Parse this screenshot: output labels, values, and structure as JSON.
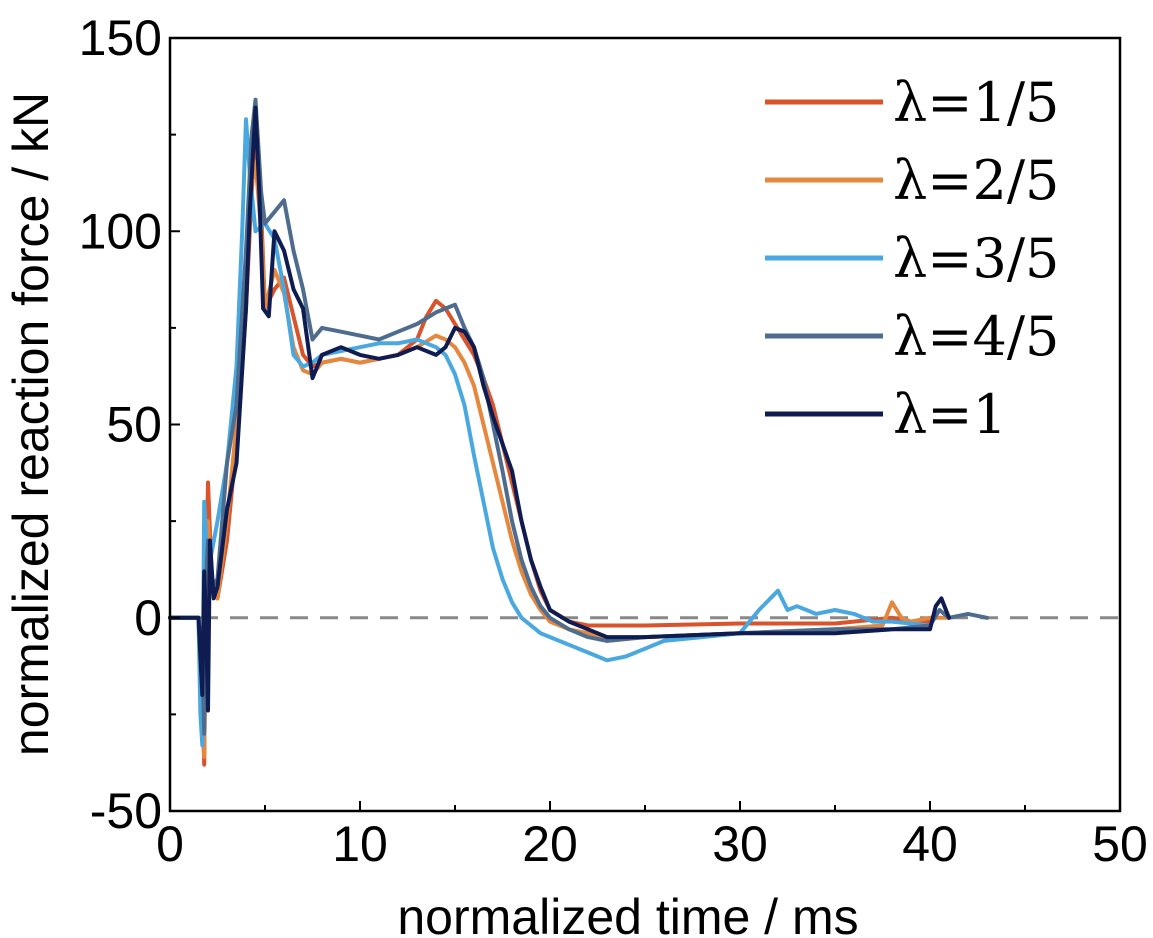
{
  "chart_data": {
    "type": "line",
    "title": "",
    "xlabel": "normalized time / ms",
    "ylabel": "normalized reaction force / kN",
    "xlim": [
      0,
      50
    ],
    "ylim": [
      -50,
      150
    ],
    "xticks": [
      0,
      10,
      20,
      30,
      40,
      50
    ],
    "yticks": [
      -50,
      0,
      50,
      100,
      150
    ],
    "grid": false,
    "legend_position": "top-right",
    "zero_line": {
      "y": 0,
      "style": "dashed",
      "color": "#888888"
    },
    "series": [
      {
        "name": "λ=1/5",
        "color": "#d9532b",
        "points": [
          [
            0,
            0
          ],
          [
            1.5,
            0
          ],
          [
            1.7,
            -20
          ],
          [
            1.8,
            -38
          ],
          [
            1.9,
            10
          ],
          [
            2.0,
            35
          ],
          [
            2.2,
            10
          ],
          [
            2.5,
            5
          ],
          [
            3.0,
            20
          ],
          [
            3.5,
            45
          ],
          [
            4.0,
            80
          ],
          [
            4.3,
            110
          ],
          [
            4.5,
            125
          ],
          [
            4.8,
            105
          ],
          [
            5.0,
            80
          ],
          [
            5.5,
            85
          ],
          [
            6.0,
            88
          ],
          [
            6.5,
            78
          ],
          [
            7.0,
            68
          ],
          [
            7.5,
            65
          ],
          [
            8.0,
            66
          ],
          [
            9.0,
            67
          ],
          [
            10.0,
            66
          ],
          [
            11.0,
            67
          ],
          [
            12.0,
            68
          ],
          [
            13.0,
            72
          ],
          [
            13.5,
            78
          ],
          [
            14.0,
            82
          ],
          [
            14.5,
            80
          ],
          [
            15.0,
            76
          ],
          [
            15.5,
            72
          ],
          [
            16.0,
            68
          ],
          [
            16.5,
            62
          ],
          [
            17.0,
            55
          ],
          [
            17.5,
            45
          ],
          [
            18.0,
            35
          ],
          [
            18.5,
            25
          ],
          [
            19.0,
            15
          ],
          [
            19.5,
            7
          ],
          [
            20.0,
            2
          ],
          [
            21.0,
            -1
          ],
          [
            22.0,
            -2
          ],
          [
            23.0,
            -2
          ],
          [
            25.0,
            -2
          ],
          [
            30.0,
            -1.5
          ],
          [
            35.0,
            -1.5
          ],
          [
            38.0,
            0
          ],
          [
            39.0,
            -1
          ],
          [
            40.0,
            -1
          ]
        ]
      },
      {
        "name": "λ=2/5",
        "color": "#e5883e",
        "points": [
          [
            0,
            0
          ],
          [
            1.5,
            0
          ],
          [
            1.7,
            -30
          ],
          [
            1.8,
            -36
          ],
          [
            1.9,
            5
          ],
          [
            2.0,
            25
          ],
          [
            2.2,
            8
          ],
          [
            2.5,
            5
          ],
          [
            3.0,
            25
          ],
          [
            3.5,
            50
          ],
          [
            4.0,
            85
          ],
          [
            4.3,
            112
          ],
          [
            4.5,
            118
          ],
          [
            4.8,
            100
          ],
          [
            5.0,
            80
          ],
          [
            5.5,
            90
          ],
          [
            6.0,
            84
          ],
          [
            6.5,
            70
          ],
          [
            7.0,
            64
          ],
          [
            7.5,
            63
          ],
          [
            8.0,
            66
          ],
          [
            9.0,
            67
          ],
          [
            10.0,
            66
          ],
          [
            11.0,
            67
          ],
          [
            12.0,
            68
          ],
          [
            13.0,
            70
          ],
          [
            14.0,
            73
          ],
          [
            14.5,
            72
          ],
          [
            15.0,
            70
          ],
          [
            15.5,
            66
          ],
          [
            16.0,
            60
          ],
          [
            16.5,
            50
          ],
          [
            17.0,
            40
          ],
          [
            17.5,
            30
          ],
          [
            18.0,
            20
          ],
          [
            18.5,
            12
          ],
          [
            19.0,
            6
          ],
          [
            19.5,
            2
          ],
          [
            20.0,
            -1
          ],
          [
            21.0,
            -3
          ],
          [
            22.0,
            -4
          ],
          [
            23.0,
            -6
          ],
          [
            25.0,
            -5
          ],
          [
            30.0,
            -4
          ],
          [
            35.0,
            -3
          ],
          [
            37.5,
            -2
          ],
          [
            38.0,
            4
          ],
          [
            38.5,
            0
          ],
          [
            39.0,
            -1
          ],
          [
            40.0,
            0
          ],
          [
            41.0,
            0
          ]
        ]
      },
      {
        "name": "λ=3/5",
        "color": "#4aa8e0",
        "points": [
          [
            0,
            0
          ],
          [
            1.5,
            0
          ],
          [
            1.6,
            -25
          ],
          [
            1.7,
            -33
          ],
          [
            1.8,
            30
          ],
          [
            1.9,
            20
          ],
          [
            2.0,
            12
          ],
          [
            2.5,
            25
          ],
          [
            3.0,
            40
          ],
          [
            3.5,
            65
          ],
          [
            3.8,
            100
          ],
          [
            4.0,
            129
          ],
          [
            4.2,
            115
          ],
          [
            4.5,
            100
          ],
          [
            5.0,
            102
          ],
          [
            5.5,
            98
          ],
          [
            6.0,
            85
          ],
          [
            6.5,
            68
          ],
          [
            7.0,
            65
          ],
          [
            7.5,
            66
          ],
          [
            8.0,
            68
          ],
          [
            9.0,
            69
          ],
          [
            10.0,
            70
          ],
          [
            11.0,
            71
          ],
          [
            12.0,
            71
          ],
          [
            13.0,
            72
          ],
          [
            14.0,
            70
          ],
          [
            14.5,
            68
          ],
          [
            15.0,
            63
          ],
          [
            15.5,
            55
          ],
          [
            16.0,
            42
          ],
          [
            16.5,
            30
          ],
          [
            17.0,
            18
          ],
          [
            17.5,
            10
          ],
          [
            18.0,
            4
          ],
          [
            18.5,
            0
          ],
          [
            19.0,
            -2
          ],
          [
            19.5,
            -4
          ],
          [
            20.0,
            -5
          ],
          [
            21.0,
            -7
          ],
          [
            22.0,
            -9
          ],
          [
            23.0,
            -11
          ],
          [
            24.0,
            -10
          ],
          [
            25.0,
            -8
          ],
          [
            26.0,
            -6
          ],
          [
            28.0,
            -5
          ],
          [
            30.0,
            -4
          ],
          [
            31.0,
            2
          ],
          [
            32.0,
            7
          ],
          [
            32.5,
            2
          ],
          [
            33.0,
            3
          ],
          [
            34.0,
            1
          ],
          [
            35.0,
            2
          ],
          [
            36.0,
            1
          ],
          [
            37.0,
            -1
          ],
          [
            38.0,
            -1
          ],
          [
            40.0,
            -2
          ]
        ]
      },
      {
        "name": "λ=4/5",
        "color": "#4e6d8e",
        "points": [
          [
            0,
            0
          ],
          [
            1.5,
            0
          ],
          [
            1.7,
            -10
          ],
          [
            1.8,
            -30
          ],
          [
            1.9,
            10
          ],
          [
            2.0,
            20
          ],
          [
            2.2,
            8
          ],
          [
            2.5,
            10
          ],
          [
            3.0,
            40
          ],
          [
            3.5,
            55
          ],
          [
            4.0,
            95
          ],
          [
            4.3,
            125
          ],
          [
            4.5,
            134
          ],
          [
            4.8,
            110
          ],
          [
            5.0,
            102
          ],
          [
            5.5,
            105
          ],
          [
            6.0,
            108
          ],
          [
            6.5,
            95
          ],
          [
            7.0,
            85
          ],
          [
            7.5,
            72
          ],
          [
            8.0,
            75
          ],
          [
            9.0,
            74
          ],
          [
            10.0,
            73
          ],
          [
            11.0,
            72
          ],
          [
            12.0,
            74
          ],
          [
            13.0,
            76
          ],
          [
            14.0,
            79
          ],
          [
            14.5,
            80
          ],
          [
            15.0,
            81
          ],
          [
            15.5,
            75
          ],
          [
            16.0,
            70
          ],
          [
            16.5,
            62
          ],
          [
            17.0,
            50
          ],
          [
            17.5,
            38
          ],
          [
            18.0,
            25
          ],
          [
            18.5,
            15
          ],
          [
            19.0,
            8
          ],
          [
            19.5,
            3
          ],
          [
            20.0,
            0
          ],
          [
            21.0,
            -3
          ],
          [
            22.0,
            -5
          ],
          [
            23.0,
            -6
          ],
          [
            25.0,
            -5
          ],
          [
            30.0,
            -4
          ],
          [
            35.0,
            -3
          ],
          [
            38.0,
            -3
          ],
          [
            40.0,
            -2
          ],
          [
            40.5,
            2
          ],
          [
            41.0,
            0
          ],
          [
            42.0,
            1
          ],
          [
            43.0,
            0
          ]
        ]
      },
      {
        "name": "λ=1",
        "color": "#0f1c52",
        "points": [
          [
            0,
            0
          ],
          [
            1.5,
            0
          ],
          [
            1.7,
            -20
          ],
          [
            1.8,
            12
          ],
          [
            1.9,
            -2
          ],
          [
            2.0,
            -24
          ],
          [
            2.1,
            20
          ],
          [
            2.3,
            5
          ],
          [
            2.5,
            8
          ],
          [
            3.0,
            28
          ],
          [
            3.5,
            40
          ],
          [
            4.0,
            80
          ],
          [
            4.2,
            105
          ],
          [
            4.5,
            132
          ],
          [
            4.7,
            110
          ],
          [
            4.9,
            80
          ],
          [
            5.2,
            78
          ],
          [
            5.5,
            100
          ],
          [
            6.0,
            95
          ],
          [
            6.5,
            85
          ],
          [
            7.0,
            80
          ],
          [
            7.5,
            62
          ],
          [
            8.0,
            68
          ],
          [
            9.0,
            70
          ],
          [
            10.0,
            68
          ],
          [
            11.0,
            67
          ],
          [
            12.0,
            68
          ],
          [
            13.0,
            70
          ],
          [
            14.0,
            68
          ],
          [
            14.5,
            70
          ],
          [
            15.0,
            75
          ],
          [
            15.5,
            74
          ],
          [
            16.0,
            70
          ],
          [
            16.5,
            60
          ],
          [
            17.0,
            52
          ],
          [
            17.5,
            45
          ],
          [
            18.0,
            38
          ],
          [
            18.5,
            25
          ],
          [
            19.0,
            15
          ],
          [
            19.5,
            8
          ],
          [
            20.0,
            2
          ],
          [
            21.0,
            -1
          ],
          [
            22.0,
            -3
          ],
          [
            23.0,
            -5
          ],
          [
            25.0,
            -5
          ],
          [
            30.0,
            -4
          ],
          [
            35.0,
            -4
          ],
          [
            38.0,
            -3
          ],
          [
            40.0,
            -3
          ],
          [
            40.3,
            3
          ],
          [
            40.6,
            5
          ],
          [
            41.0,
            0
          ]
        ]
      }
    ]
  }
}
